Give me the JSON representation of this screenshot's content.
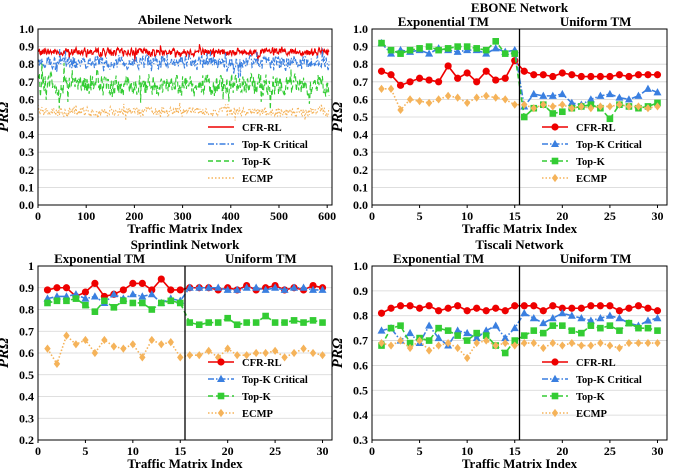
{
  "colors": {
    "cfr_rl": "#ee0000",
    "topk_critical": "#3a7fe0",
    "topk": "#33cc33",
    "ecmp": "#f5b35a"
  },
  "legend": [
    "CFR-RL",
    "Top-K Critical",
    "Top-K",
    "ECMP"
  ],
  "chart_data": [
    {
      "id": "abilene",
      "type": "line",
      "title": "Abilene Network",
      "xlabel": "Traffic Matrix Index",
      "ylabel": "PRΩ",
      "xlim": [
        0,
        610
      ],
      "ylim": [
        0,
        1.0
      ],
      "xticks": [
        0,
        100,
        200,
        300,
        400,
        500,
        600
      ],
      "yticks": [
        0.0,
        0.1,
        0.2,
        0.3,
        0.4,
        0.5,
        0.6,
        0.7,
        0.8,
        0.9,
        1.0
      ],
      "ytick_labels": [
        "0.0",
        "0.1",
        "0.2",
        "0.3",
        "0.4",
        "0.5",
        "0.6",
        "0.7",
        "0.8",
        "0.9",
        "1.0"
      ],
      "legend_position": "lower-right",
      "divider": null,
      "sections": [],
      "noisy_series": [
        {
          "name": "CFR-RL",
          "key": "cfr_rl",
          "mean": 0.87,
          "amp": 0.03,
          "min": 0.81,
          "max": 0.93,
          "style": "solid"
        },
        {
          "name": "Top-K Critical",
          "key": "topk_critical",
          "mean": 0.81,
          "amp": 0.05,
          "min": 0.68,
          "max": 0.9,
          "style": "dashdot"
        },
        {
          "name": "Top-K",
          "key": "topk",
          "mean": 0.68,
          "amp": 0.08,
          "min": 0.52,
          "max": 0.85,
          "style": "dashed"
        },
        {
          "name": "ECMP",
          "key": "ecmp",
          "mean": 0.53,
          "amp": 0.035,
          "min": 0.44,
          "max": 0.62,
          "style": "dotted"
        }
      ],
      "n_points": 605
    },
    {
      "id": "ebone",
      "type": "line",
      "title": "EBONE Network",
      "xlabel": "Traffic Matrix Index",
      "ylabel": "PRΩ",
      "xlim": [
        0,
        31
      ],
      "ylim": [
        0,
        1.0
      ],
      "xticks": [
        0,
        5,
        10,
        15,
        20,
        25,
        30
      ],
      "yticks": [
        0.0,
        0.1,
        0.2,
        0.3,
        0.4,
        0.5,
        0.6,
        0.7,
        0.8,
        0.9,
        1.0
      ],
      "ytick_labels": [
        "0.0",
        "0.1",
        "0.2",
        "0.3",
        "0.4",
        "0.5",
        "0.6",
        "0.7",
        "0.8",
        "0.9",
        "1.0"
      ],
      "legend_position": "lower-right",
      "divider": 15.5,
      "sections": [
        {
          "label": "Exponential TM",
          "x": 7.5
        },
        {
          "label": "Uniform TM",
          "x": 23.5
        }
      ],
      "x": [
        1,
        2,
        3,
        4,
        5,
        6,
        7,
        8,
        9,
        10,
        11,
        12,
        13,
        14,
        15,
        16,
        17,
        18,
        19,
        20,
        21,
        22,
        23,
        24,
        25,
        26,
        27,
        28,
        29,
        30
      ],
      "series": [
        {
          "name": "CFR-RL",
          "key": "cfr_rl",
          "marker": "circle",
          "style": "solid",
          "values": [
            0.76,
            0.74,
            0.68,
            0.7,
            0.72,
            0.71,
            0.7,
            0.79,
            0.72,
            0.75,
            0.7,
            0.76,
            0.71,
            0.72,
            0.82,
            0.76,
            0.74,
            0.74,
            0.73,
            0.75,
            0.74,
            0.73,
            0.73,
            0.73,
            0.73,
            0.74,
            0.73,
            0.74,
            0.74,
            0.74
          ]
        },
        {
          "name": "Top-K Critical",
          "key": "topk_critical",
          "marker": "triangle",
          "style": "dashdot",
          "values": [
            0.92,
            0.86,
            0.88,
            0.87,
            0.88,
            0.86,
            0.89,
            0.88,
            0.87,
            0.88,
            0.88,
            0.86,
            0.89,
            0.87,
            0.88,
            0.56,
            0.63,
            0.62,
            0.62,
            0.63,
            0.58,
            0.57,
            0.6,
            0.62,
            0.63,
            0.61,
            0.6,
            0.62,
            0.66,
            0.64
          ]
        },
        {
          "name": "Top-K",
          "key": "topk",
          "marker": "square",
          "style": "dashed",
          "values": [
            0.92,
            0.88,
            0.86,
            0.88,
            0.89,
            0.9,
            0.88,
            0.89,
            0.9,
            0.9,
            0.89,
            0.88,
            0.93,
            0.86,
            0.86,
            0.5,
            0.55,
            0.57,
            0.52,
            0.53,
            0.55,
            0.56,
            0.57,
            0.55,
            0.49,
            0.57,
            0.56,
            0.55,
            0.56,
            0.58
          ]
        },
        {
          "name": "ECMP",
          "key": "ecmp",
          "marker": "diamond",
          "style": "dotted",
          "values": [
            0.66,
            0.66,
            0.54,
            0.6,
            0.59,
            0.58,
            0.6,
            0.62,
            0.61,
            0.58,
            0.61,
            0.62,
            0.61,
            0.6,
            0.57,
            0.57,
            0.55,
            0.57,
            0.56,
            0.57,
            0.55,
            0.56,
            0.55,
            0.56,
            0.56,
            0.57,
            0.56,
            0.56,
            0.55,
            0.56
          ]
        }
      ]
    },
    {
      "id": "sprintlink",
      "type": "line",
      "title": "Sprintlink Network",
      "xlabel": "Traffic Matrix Index",
      "ylabel": "PRΩ",
      "xlim": [
        0,
        31
      ],
      "ylim": [
        0.2,
        1.0
      ],
      "xticks": [
        0,
        5,
        10,
        15,
        20,
        25,
        30
      ],
      "yticks": [
        0.2,
        0.3,
        0.4,
        0.5,
        0.6,
        0.7,
        0.8,
        0.9,
        1.0
      ],
      "ytick_labels": [
        "0.2",
        "0.3",
        "0.4",
        "0.5",
        "0.6",
        "0.7",
        "0.8",
        "0.9",
        "1"
      ],
      "legend_position": "lower-right",
      "divider": 15.5,
      "sections": [
        {
          "label": "Exponential TM",
          "x": 6.5
        },
        {
          "label": "Uniform TM",
          "x": 23.5
        }
      ],
      "x": [
        1,
        2,
        3,
        4,
        5,
        6,
        7,
        8,
        9,
        10,
        11,
        12,
        13,
        14,
        15,
        16,
        17,
        18,
        19,
        20,
        21,
        22,
        23,
        24,
        25,
        26,
        27,
        28,
        29,
        30
      ],
      "series": [
        {
          "name": "CFR-RL",
          "key": "cfr_rl",
          "marker": "circle",
          "style": "solid",
          "values": [
            0.89,
            0.9,
            0.9,
            0.86,
            0.88,
            0.92,
            0.86,
            0.87,
            0.89,
            0.92,
            0.92,
            0.89,
            0.94,
            0.89,
            0.89,
            0.9,
            0.9,
            0.9,
            0.89,
            0.9,
            0.89,
            0.91,
            0.89,
            0.9,
            0.91,
            0.89,
            0.9,
            0.89,
            0.91,
            0.9
          ]
        },
        {
          "name": "Top-K Critical",
          "key": "topk_critical",
          "marker": "triangle",
          "style": "dashdot",
          "values": [
            0.85,
            0.86,
            0.86,
            0.87,
            0.85,
            0.86,
            0.83,
            0.87,
            0.85,
            0.87,
            0.86,
            0.87,
            0.83,
            0.85,
            0.84,
            0.9,
            0.9,
            0.9,
            0.9,
            0.89,
            0.89,
            0.9,
            0.9,
            0.89,
            0.9,
            0.89,
            0.9,
            0.9,
            0.89,
            0.89
          ]
        },
        {
          "name": "Top-K",
          "key": "topk",
          "marker": "square",
          "style": "dashed",
          "values": [
            0.83,
            0.84,
            0.84,
            0.85,
            0.82,
            0.79,
            0.84,
            0.81,
            0.84,
            0.83,
            0.83,
            0.8,
            0.83,
            0.84,
            0.83,
            0.74,
            0.73,
            0.74,
            0.74,
            0.76,
            0.73,
            0.74,
            0.74,
            0.77,
            0.74,
            0.74,
            0.75,
            0.74,
            0.75,
            0.74
          ]
        },
        {
          "name": "ECMP",
          "key": "ecmp",
          "marker": "diamond",
          "style": "dotted",
          "values": [
            0.62,
            0.55,
            0.68,
            0.64,
            0.66,
            0.6,
            0.66,
            0.63,
            0.62,
            0.64,
            0.58,
            0.66,
            0.64,
            0.65,
            0.58,
            0.59,
            0.59,
            0.61,
            0.58,
            0.62,
            0.59,
            0.59,
            0.6,
            0.6,
            0.61,
            0.58,
            0.6,
            0.62,
            0.6,
            0.59
          ]
        }
      ]
    },
    {
      "id": "tiscali",
      "type": "line",
      "title": "Tiscali Network",
      "xlabel": "Traffic Matrix Index",
      "ylabel": "PRΩ",
      "xlim": [
        0,
        31
      ],
      "ylim": [
        0.3,
        1.0
      ],
      "xticks": [
        0,
        5,
        10,
        15,
        20,
        25,
        30
      ],
      "yticks": [
        0.3,
        0.4,
        0.5,
        0.6,
        0.7,
        0.8,
        0.9,
        1.0
      ],
      "ytick_labels": [
        "0.3",
        "0.4",
        "0.5",
        "0.6",
        "0.7",
        "0.8",
        "0.9",
        "1.0"
      ],
      "legend_position": "lower-right",
      "divider": 15.5,
      "sections": [
        {
          "label": "Exponential TM",
          "x": 7.0
        },
        {
          "label": "Uniform TM",
          "x": 23.5
        }
      ],
      "x": [
        1,
        2,
        3,
        4,
        5,
        6,
        7,
        8,
        9,
        10,
        11,
        12,
        13,
        14,
        15,
        16,
        17,
        18,
        19,
        20,
        21,
        22,
        23,
        24,
        25,
        26,
        27,
        28,
        29,
        30
      ],
      "series": [
        {
          "name": "CFR-RL",
          "key": "cfr_rl",
          "marker": "circle",
          "style": "solid",
          "values": [
            0.81,
            0.83,
            0.84,
            0.84,
            0.83,
            0.84,
            0.82,
            0.83,
            0.84,
            0.82,
            0.83,
            0.82,
            0.83,
            0.82,
            0.84,
            0.84,
            0.84,
            0.82,
            0.84,
            0.83,
            0.83,
            0.83,
            0.84,
            0.84,
            0.84,
            0.82,
            0.83,
            0.84,
            0.83,
            0.82
          ]
        },
        {
          "name": "Top-K Critical",
          "key": "topk_critical",
          "marker": "triangle",
          "style": "dashdot",
          "values": [
            0.74,
            0.75,
            0.7,
            0.73,
            0.69,
            0.76,
            0.71,
            0.68,
            0.74,
            0.73,
            0.71,
            0.74,
            0.76,
            0.71,
            0.75,
            0.81,
            0.79,
            0.77,
            0.79,
            0.81,
            0.8,
            0.79,
            0.78,
            0.79,
            0.8,
            0.79,
            0.77,
            0.76,
            0.78,
            0.79
          ]
        },
        {
          "name": "Top-K",
          "key": "topk",
          "marker": "square",
          "style": "dashed",
          "values": [
            0.68,
            0.75,
            0.76,
            0.69,
            0.71,
            0.7,
            0.75,
            0.74,
            0.72,
            0.7,
            0.73,
            0.72,
            0.68,
            0.65,
            0.7,
            0.72,
            0.74,
            0.73,
            0.76,
            0.76,
            0.74,
            0.73,
            0.76,
            0.75,
            0.76,
            0.74,
            0.77,
            0.75,
            0.75,
            0.74
          ]
        },
        {
          "name": "ECMP",
          "key": "ecmp",
          "marker": "diamond",
          "style": "dotted",
          "values": [
            0.69,
            0.68,
            0.7,
            0.67,
            0.7,
            0.66,
            0.68,
            0.69,
            0.67,
            0.63,
            0.69,
            0.7,
            0.68,
            0.69,
            0.68,
            0.69,
            0.69,
            0.67,
            0.69,
            0.68,
            0.69,
            0.68,
            0.68,
            0.69,
            0.68,
            0.67,
            0.69,
            0.69,
            0.69,
            0.69
          ]
        }
      ]
    }
  ]
}
